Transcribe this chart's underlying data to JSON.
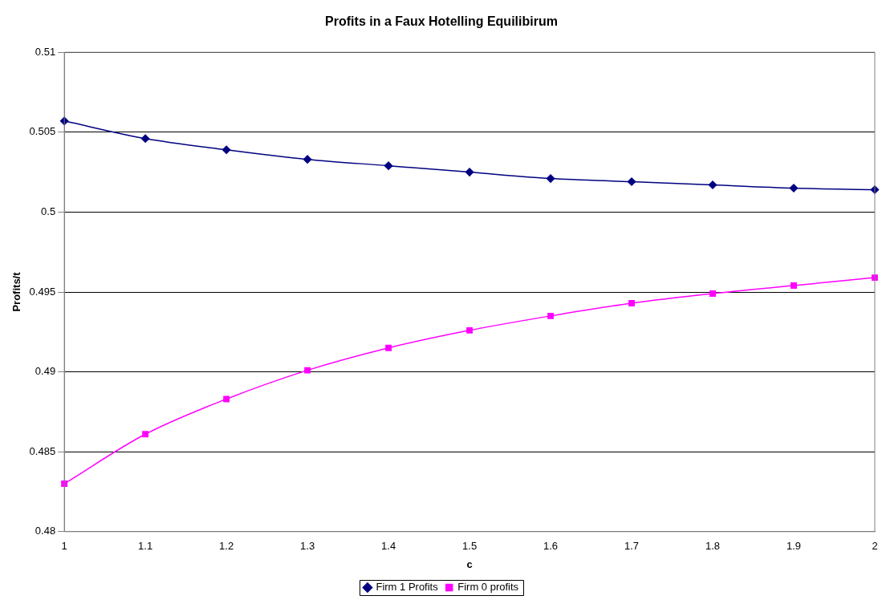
{
  "chart_data": {
    "type": "line",
    "title": "Profits in a Faux Hotelling Equilibirum",
    "xlabel": "c",
    "ylabel": "Profits/t",
    "x": [
      1,
      1.1,
      1.2,
      1.3,
      1.4,
      1.5,
      1.6,
      1.7,
      1.8,
      1.9,
      2
    ],
    "series": [
      {
        "name": "Firm 1 Profits",
        "color": "#000080",
        "marker": "diamond",
        "values": [
          0.5057,
          0.5046,
          0.5039,
          0.5033,
          0.5029,
          0.5025,
          0.5021,
          0.5019,
          0.5017,
          0.5015,
          0.5014
        ]
      },
      {
        "name": "Firm 0 profits",
        "color": "#ff00ff",
        "marker": "square",
        "values": [
          0.483,
          0.4861,
          0.4883,
          0.4901,
          0.4915,
          0.4926,
          0.4935,
          0.4943,
          0.4949,
          0.4954,
          0.4959
        ]
      }
    ],
    "xlim": [
      1,
      2
    ],
    "xticks": [
      1,
      1.1,
      1.2,
      1.3,
      1.4,
      1.5,
      1.6,
      1.7,
      1.8,
      1.9,
      2
    ],
    "ylim": [
      0.48,
      0.51
    ],
    "yticks": [
      0.48,
      0.485,
      0.49,
      0.495,
      0.5,
      0.505,
      0.51
    ],
    "grid": "y",
    "legend": "bottom",
    "line_style": "solid"
  }
}
